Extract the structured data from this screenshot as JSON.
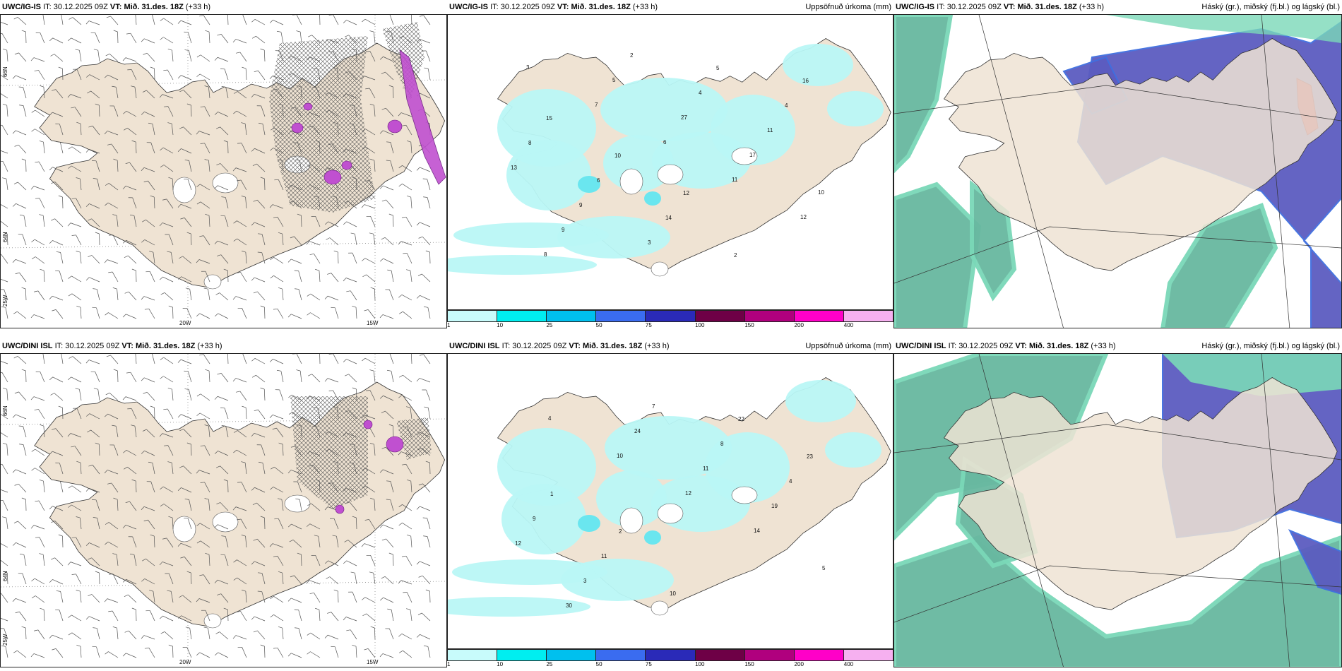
{
  "rows": [
    {
      "model": "UWC/IG-IS",
      "panels": [
        {
          "id": "wind",
          "it": "30.12.2025 09Z",
          "vt": "Mið. 31.des. 18Z",
          "lead": "(+33 h)",
          "title": ""
        },
        {
          "id": "precip",
          "it": "30.12.2025 09Z",
          "vt": "Mið. 31.des. 18Z",
          "lead": "(+33 h)",
          "title": "Uppsöfnuð úrkoma (mm)"
        },
        {
          "id": "cloud",
          "it": "30.12.2025 09Z",
          "vt": "Mið. 31.des. 18Z",
          "lead": "(+33 h)",
          "title": "Háský (gr.), miðský (fj.bl.) og lágský (bl.)"
        }
      ]
    },
    {
      "model": "UWC/DINI ISL",
      "panels": [
        {
          "id": "wind",
          "it": "30.12.2025 09Z",
          "vt": "Mið. 31.des. 18Z",
          "lead": "(+33 h)",
          "title": ""
        },
        {
          "id": "precip",
          "it": "30.12.2025 09Z",
          "vt": "Mið. 31.des. 18Z",
          "lead": "(+33 h)",
          "title": "Uppsöfnuð úrkoma (mm)"
        },
        {
          "id": "cloud",
          "it": "30.12.2025 09Z",
          "vt": "Mið. 31.des. 18Z",
          "lead": "(+33 h)",
          "title": "Háský (gr.), miðský (fj.bl.) og lágský (bl.)"
        }
      ]
    }
  ],
  "labels": {
    "it": "IT:",
    "vt": "VT:"
  },
  "axis_labels": {
    "lon": [
      "20W",
      "15W"
    ],
    "lat": [
      "66N",
      "64N",
      "25W"
    ]
  },
  "precip_legend": {
    "ticks": [
      "1",
      "10",
      "25",
      "50",
      "75",
      "100",
      "150",
      "200",
      "400"
    ],
    "colors": [
      "#c8fbfb",
      "#00eef0",
      "#00c0ee",
      "#3a6cf0",
      "#2a2ab8",
      "#6e0046",
      "#b0007e",
      "#ff00c8",
      "#f6b0f0"
    ]
  },
  "colors": {
    "land": "#efe3d3",
    "precip_light": "#b9f7f5",
    "precip_mid": "#6ae6ef",
    "cloud_high": "#5c5cc0",
    "cloud_mid": "#7ad8b8",
    "cloud_low": "#68b8a0",
    "shower": "#c050d0"
  },
  "precip_values_top": [
    "3",
    "7",
    "6",
    "11",
    "12",
    "8",
    "5",
    "27",
    "17",
    "10",
    "9",
    "2",
    "4",
    "11",
    "13",
    "9",
    "3",
    "5",
    "4",
    "8",
    "6",
    "14",
    "2",
    "16",
    "15",
    "10",
    "12"
  ],
  "precip_values_bottom": [
    "4",
    "10",
    "12",
    "14",
    "5",
    "30",
    "24",
    "11",
    "19",
    "12",
    "3",
    "7",
    "8",
    "4",
    "9",
    "11",
    "10",
    "22",
    "23",
    "1",
    "2"
  ]
}
